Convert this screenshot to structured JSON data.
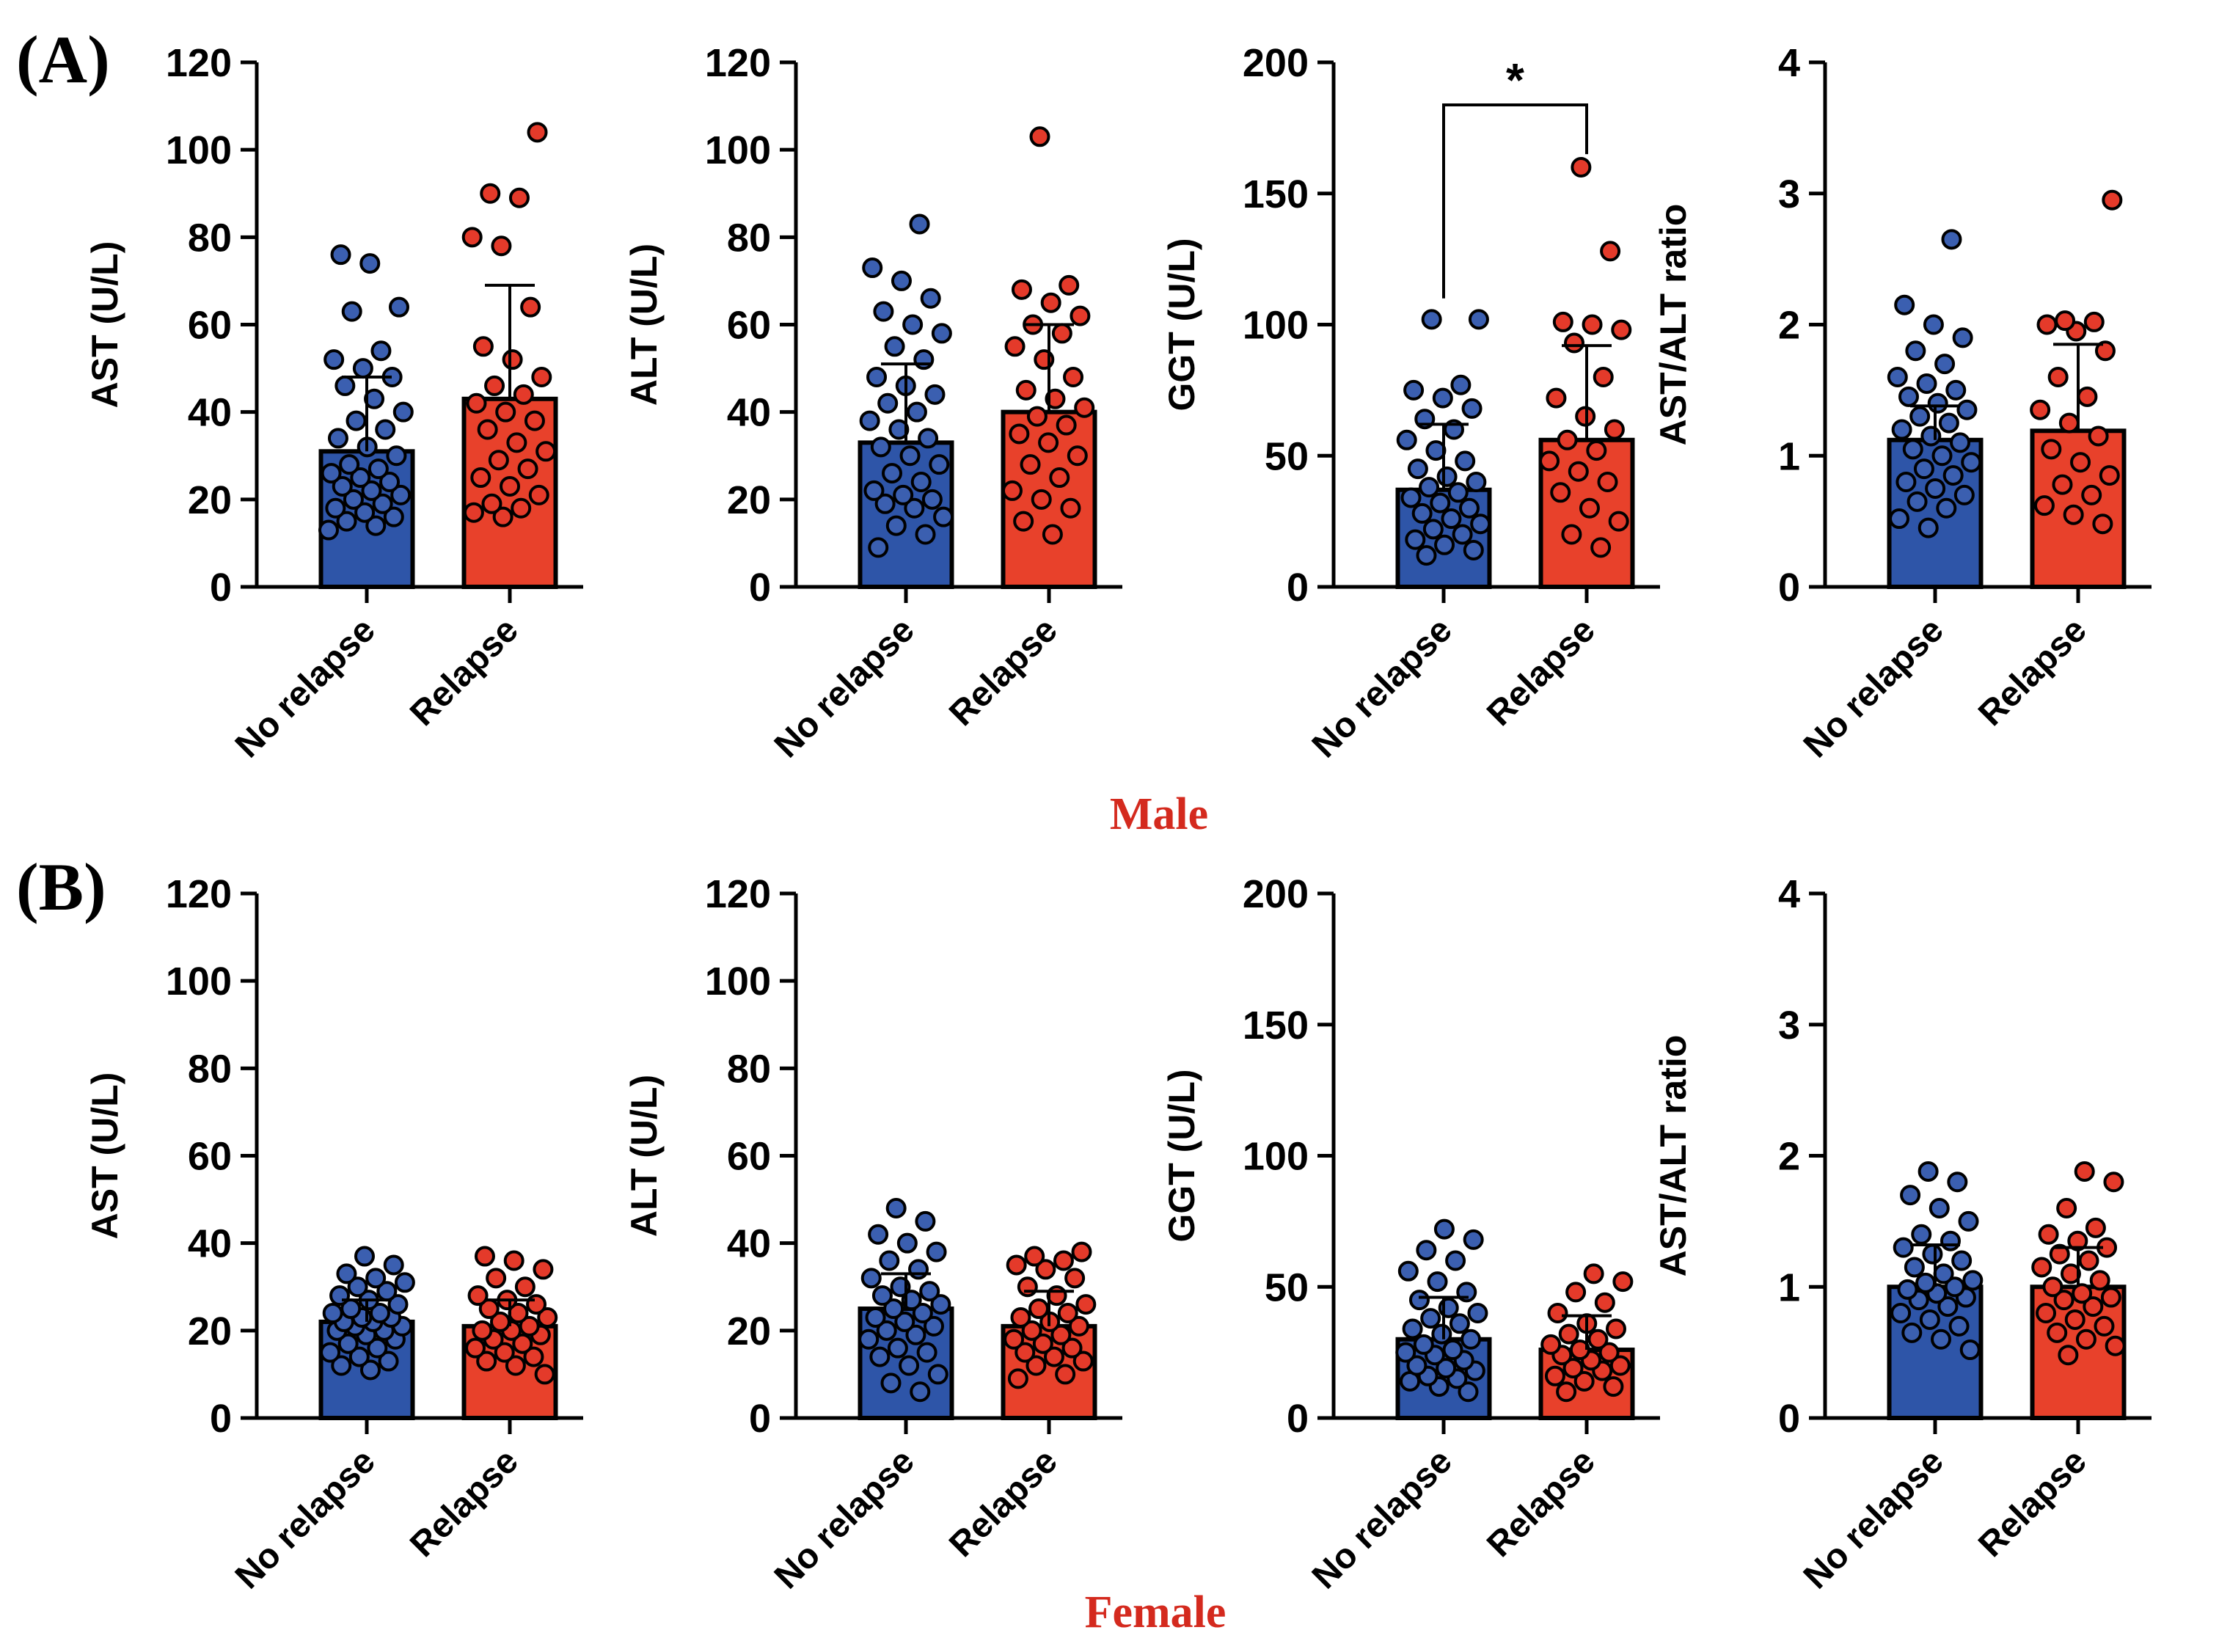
{
  "figure": {
    "panel_a_label": "(A)",
    "panel_b_label": "(B)",
    "male_label": "Male",
    "female_label": "Female"
  },
  "colors": {
    "no_relapse": "#2e55a8",
    "relapse": "#e8412b",
    "no_relapse_dot": "#3b5fb0",
    "relapse_dot": "#e43a2a",
    "axis": "#000000"
  },
  "chart_data": [
    {
      "id": "male-ast",
      "type": "bar",
      "row": 0,
      "col": 0,
      "ylabel": "AST (U/L)",
      "ylim": [
        0,
        120
      ],
      "yticks": [
        0,
        20,
        40,
        60,
        80,
        100,
        120
      ],
      "categories": [
        "No relapse",
        "Relapse"
      ],
      "means": [
        31,
        43
      ],
      "sd_upper": [
        48,
        69
      ],
      "points": [
        [
          13,
          14,
          15,
          16,
          17,
          18,
          19,
          20,
          21,
          22,
          23,
          24,
          25,
          26,
          27,
          28,
          30,
          32,
          34,
          36,
          38,
          40,
          43,
          46,
          48,
          50,
          52,
          54,
          63,
          64,
          74,
          76
        ],
        [
          16,
          17,
          18,
          19,
          21,
          23,
          25,
          27,
          29,
          31,
          33,
          36,
          38,
          40,
          42,
          44,
          46,
          48,
          52,
          55,
          64,
          78,
          80,
          89,
          90,
          104
        ]
      ]
    },
    {
      "id": "male-alt",
      "type": "bar",
      "row": 0,
      "col": 1,
      "ylabel": "ALT (U/L)",
      "ylim": [
        0,
        120
      ],
      "yticks": [
        0,
        20,
        40,
        60,
        80,
        100,
        120
      ],
      "categories": [
        "No relapse",
        "Relapse"
      ],
      "means": [
        33,
        40
      ],
      "sd_upper": [
        51,
        60
      ],
      "points": [
        [
          9,
          12,
          14,
          16,
          18,
          19,
          20,
          21,
          22,
          24,
          26,
          28,
          30,
          32,
          34,
          36,
          38,
          40,
          42,
          44,
          46,
          48,
          52,
          55,
          58,
          60,
          63,
          66,
          70,
          73,
          83
        ],
        [
          12,
          15,
          18,
          20,
          22,
          25,
          28,
          30,
          33,
          35,
          37,
          39,
          41,
          43,
          45,
          48,
          52,
          55,
          58,
          60,
          62,
          65,
          68,
          69,
          103
        ]
      ]
    },
    {
      "id": "male-ggt",
      "type": "bar",
      "row": 0,
      "col": 2,
      "ylabel": "GGT (U/L)",
      "ylim": [
        0,
        200
      ],
      "yticks": [
        0,
        50,
        100,
        150,
        200
      ],
      "categories": [
        "No relapse",
        "Relapse"
      ],
      "means": [
        37,
        56
      ],
      "sd_upper": [
        62,
        92
      ],
      "points": [
        [
          12,
          14,
          16,
          18,
          20,
          22,
          24,
          26,
          28,
          30,
          32,
          34,
          36,
          38,
          40,
          42,
          45,
          48,
          52,
          56,
          60,
          64,
          68,
          72,
          75,
          77,
          102,
          102
        ],
        [
          15,
          20,
          25,
          30,
          36,
          40,
          44,
          48,
          52,
          56,
          60,
          65,
          72,
          80,
          93,
          98,
          100,
          101,
          128,
          160
        ]
      ],
      "significance": "*"
    },
    {
      "id": "male-ratio",
      "type": "bar",
      "row": 0,
      "col": 3,
      "ylabel": "AST/ALT ratio",
      "ylim": [
        0,
        4
      ],
      "yticks": [
        0,
        1,
        2,
        3,
        4
      ],
      "categories": [
        "No relapse",
        "Relapse"
      ],
      "means": [
        1.12,
        1.19
      ],
      "sd_upper": [
        1.38,
        1.85
      ],
      "points": [
        [
          0.45,
          0.52,
          0.6,
          0.65,
          0.7,
          0.75,
          0.8,
          0.85,
          0.9,
          0.95,
          1.0,
          1.05,
          1.1,
          1.15,
          1.2,
          1.25,
          1.3,
          1.35,
          1.4,
          1.45,
          1.5,
          1.55,
          1.6,
          1.7,
          1.8,
          1.9,
          2.0,
          2.15,
          2.65
        ],
        [
          0.48,
          0.55,
          0.62,
          0.7,
          0.78,
          0.85,
          0.95,
          1.05,
          1.15,
          1.25,
          1.35,
          1.45,
          1.6,
          1.8,
          1.95,
          2.0,
          2.02,
          2.03,
          2.95
        ]
      ]
    },
    {
      "id": "female-ast",
      "type": "bar",
      "row": 1,
      "col": 0,
      "ylabel": "AST (U/L)",
      "ylim": [
        0,
        120
      ],
      "yticks": [
        0,
        20,
        40,
        60,
        80,
        100,
        120
      ],
      "categories": [
        "No relapse",
        "Relapse"
      ],
      "means": [
        22,
        21
      ],
      "sd_upper": [
        27,
        27
      ],
      "points": [
        [
          11,
          12,
          13,
          14,
          15,
          16,
          17,
          18,
          19,
          20,
          20,
          21,
          21,
          22,
          22,
          23,
          23,
          24,
          24,
          25,
          26,
          27,
          28,
          29,
          30,
          31,
          32,
          33,
          35,
          37
        ],
        [
          10,
          12,
          13,
          14,
          15,
          16,
          17,
          18,
          19,
          20,
          20,
          21,
          22,
          23,
          24,
          25,
          26,
          27,
          28,
          30,
          32,
          34,
          36,
          37
        ]
      ]
    },
    {
      "id": "female-alt",
      "type": "bar",
      "row": 1,
      "col": 1,
      "ylabel": "ALT (U/L)",
      "ylim": [
        0,
        120
      ],
      "yticks": [
        0,
        20,
        40,
        60,
        80,
        100,
        120
      ],
      "categories": [
        "No relapse",
        "Relapse"
      ],
      "means": [
        25,
        21
      ],
      "sd_upper": [
        33,
        29
      ],
      "points": [
        [
          6,
          8,
          10,
          12,
          14,
          15,
          16,
          18,
          19,
          20,
          21,
          22,
          23,
          24,
          25,
          26,
          27,
          28,
          29,
          30,
          32,
          34,
          36,
          38,
          40,
          42,
          45,
          48
        ],
        [
          9,
          10,
          12,
          13,
          14,
          15,
          16,
          17,
          18,
          19,
          20,
          21,
          22,
          23,
          24,
          25,
          26,
          28,
          30,
          32,
          34,
          35,
          36,
          37,
          38
        ]
      ]
    },
    {
      "id": "female-ggt",
      "type": "bar",
      "row": 1,
      "col": 2,
      "ylabel": "GGT (U/L)",
      "ylim": [
        0,
        200
      ],
      "yticks": [
        0,
        50,
        100,
        150,
        200
      ],
      "categories": [
        "No relapse",
        "Relapse"
      ],
      "means": [
        30,
        26
      ],
      "sd_upper": [
        46,
        39
      ],
      "points": [
        [
          10,
          12,
          14,
          15,
          16,
          18,
          19,
          20,
          22,
          24,
          25,
          26,
          28,
          30,
          32,
          34,
          36,
          38,
          40,
          42,
          45,
          48,
          52,
          56,
          60,
          64,
          68,
          72
        ],
        [
          10,
          12,
          14,
          16,
          18,
          19,
          20,
          22,
          24,
          25,
          26,
          28,
          30,
          32,
          34,
          36,
          40,
          44,
          48,
          52,
          55
        ]
      ]
    },
    {
      "id": "female-ratio",
      "type": "bar",
      "row": 1,
      "col": 3,
      "ylabel": "AST/ALT ratio",
      "ylim": [
        0,
        4
      ],
      "yticks": [
        0,
        1,
        2,
        3,
        4
      ],
      "categories": [
        "No relapse",
        "Relapse"
      ],
      "means": [
        1.0,
        1.0
      ],
      "sd_upper": [
        1.32,
        1.3
      ],
      "points": [
        [
          0.52,
          0.6,
          0.65,
          0.7,
          0.75,
          0.8,
          0.85,
          0.9,
          0.92,
          0.95,
          0.98,
          1.0,
          1.03,
          1.05,
          1.1,
          1.15,
          1.2,
          1.25,
          1.3,
          1.35,
          1.4,
          1.5,
          1.6,
          1.7,
          1.8,
          1.88
        ],
        [
          0.48,
          0.55,
          0.6,
          0.65,
          0.7,
          0.75,
          0.8,
          0.85,
          0.9,
          0.92,
          0.95,
          1.0,
          1.05,
          1.1,
          1.15,
          1.2,
          1.25,
          1.3,
          1.35,
          1.4,
          1.45,
          1.6,
          1.8,
          1.88
        ]
      ]
    }
  ]
}
